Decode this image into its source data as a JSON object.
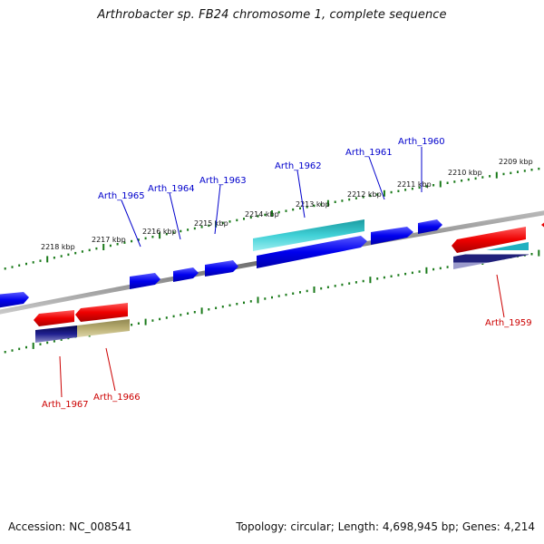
{
  "title": "Arthrobacter sp. FB24 chromosome 1, complete sequence",
  "footer": {
    "accession": "Accession: NC_008541",
    "topology": "Topology: circular; Length: 4,698,945 bp; Genes: 4,214"
  },
  "colors": {
    "backbone": "#808080",
    "tick": "#1a7a1a",
    "forward_cds": "#0000e6",
    "reverse_cds": "#e60000",
    "cyan_feature": "#18b8c0",
    "navy_feature": "#10106e",
    "olive_feature": "#b0a66a",
    "forward_label": "#0000cc",
    "reverse_label": "#cc0000"
  },
  "tick_labels": [
    "2209 kbp",
    "2210 kbp",
    "2211 kbp",
    "2212 kbp",
    "2213 kbp",
    "2214 kbp",
    "2215 kbp",
    "2216 kbp",
    "2217 kbp",
    "2218 kbp"
  ],
  "forward_genes": [
    "Arth_1960",
    "Arth_1961",
    "Arth_1962",
    "Arth_1963",
    "Arth_1964",
    "Arth_1965"
  ],
  "reverse_genes": [
    "Arth_1959",
    "Arth_1966",
    "Arth_1967"
  ]
}
